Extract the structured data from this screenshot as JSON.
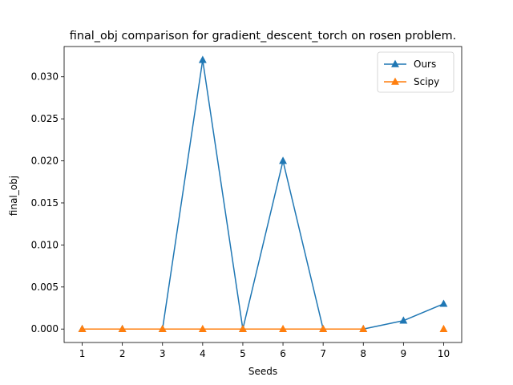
{
  "chart_data": {
    "type": "line",
    "title": "final_obj comparison for gradient_descent_torch on rosen problem.",
    "xlabel": "Seeds",
    "ylabel": "final_obj",
    "x": [
      1,
      2,
      3,
      4,
      5,
      6,
      7,
      8,
      9,
      10
    ],
    "xlim": [
      0.55,
      10.45
    ],
    "ylim": [
      -0.0016,
      0.0336
    ],
    "yticks": [
      0.0,
      0.005,
      0.01,
      0.015,
      0.02,
      0.025,
      0.03
    ],
    "ytick_labels": [
      "0.000",
      "0.005",
      "0.010",
      "0.015",
      "0.020",
      "0.025",
      "0.030"
    ],
    "xtick_labels": [
      "1",
      "2",
      "3",
      "4",
      "5",
      "6",
      "7",
      "8",
      "9",
      "10"
    ],
    "grid": false,
    "legend_position": "top-right",
    "series": [
      {
        "name": "Ours",
        "color": "#1f77b4",
        "marker": "triangle-up",
        "values": [
          0.0,
          0.0,
          0.0,
          0.032,
          0.0,
          0.02,
          0.0,
          0.0,
          0.001,
          0.003
        ]
      },
      {
        "name": "Scipy",
        "color": "#ff7f0e",
        "marker": "triangle-up",
        "values": [
          0.0,
          0.0,
          0.0,
          0.0,
          0.0,
          0.0,
          0.0,
          0.0,
          null,
          0.0
        ]
      }
    ]
  }
}
